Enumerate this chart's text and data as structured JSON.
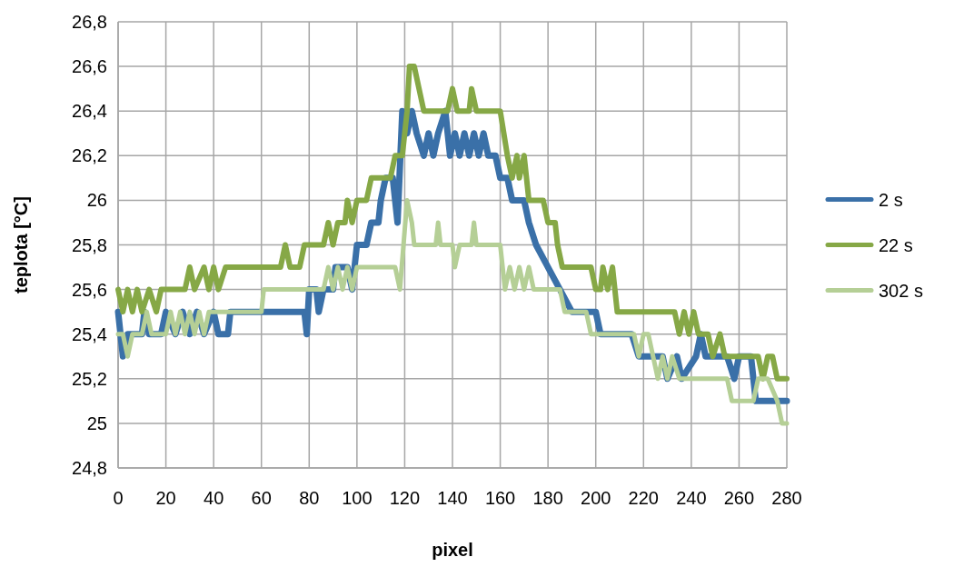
{
  "chart_data": {
    "type": "line",
    "xlabel": "pixel",
    "ylabel": "teplota [°C]",
    "xlim": [
      0,
      280
    ],
    "xticks": [
      0,
      20,
      40,
      60,
      80,
      100,
      120,
      140,
      160,
      180,
      200,
      220,
      240,
      260,
      280
    ],
    "ylim": [
      24.8,
      26.8
    ],
    "yticks": [
      {
        "value": 24.8,
        "label": "24,8"
      },
      {
        "value": 25,
        "label": "25"
      },
      {
        "value": 25.2,
        "label": "25,2"
      },
      {
        "value": 25.4,
        "label": "25,4"
      },
      {
        "value": 25.6,
        "label": "25,6"
      },
      {
        "value": 25.8,
        "label": "25,8"
      },
      {
        "value": 26,
        "label": "26"
      },
      {
        "value": 26.2,
        "label": "26,2"
      },
      {
        "value": 26.4,
        "label": "26,4"
      },
      {
        "value": 26.6,
        "label": "26,6"
      },
      {
        "value": 26.8,
        "label": "26,8"
      }
    ],
    "grid": true,
    "legend": "right",
    "marker": "none",
    "line_style": "solid",
    "series": [
      {
        "name": "2 s",
        "color": "#3a70a8",
        "x": [
          0,
          2,
          4,
          10,
          11,
          13,
          18,
          20,
          24,
          27,
          30,
          33,
          36,
          40,
          42,
          46,
          47,
          78,
          79,
          80,
          83,
          84,
          86,
          90,
          91,
          96,
          98,
          100,
          104,
          106,
          109,
          110,
          112,
          115,
          117,
          119,
          121,
          123,
          125,
          128,
          130,
          132,
          134,
          137,
          139,
          141,
          143,
          145,
          147,
          149,
          151,
          153,
          155,
          158,
          160,
          163,
          165,
          170,
          172,
          175,
          180,
          185,
          190,
          200,
          202,
          215,
          218,
          228,
          230,
          234,
          236,
          242,
          244,
          246,
          255,
          258,
          260,
          265,
          267,
          280
        ],
        "values": [
          25.5,
          25.3,
          25.4,
          25.4,
          25.5,
          25.4,
          25.4,
          25.5,
          25.4,
          25.5,
          25.4,
          25.5,
          25.4,
          25.5,
          25.4,
          25.4,
          25.5,
          25.5,
          25.4,
          25.6,
          25.6,
          25.5,
          25.6,
          25.6,
          25.7,
          25.7,
          25.6,
          25.8,
          25.8,
          25.9,
          25.9,
          26.0,
          26.1,
          26.1,
          25.9,
          26.4,
          26.3,
          26.4,
          26.3,
          26.2,
          26.3,
          26.2,
          26.3,
          26.4,
          26.2,
          26.3,
          26.2,
          26.3,
          26.2,
          26.3,
          26.2,
          26.3,
          26.2,
          26.2,
          26.1,
          26.1,
          26.0,
          26.0,
          25.9,
          25.8,
          25.7,
          25.6,
          25.5,
          25.5,
          25.4,
          25.4,
          25.3,
          25.3,
          25.2,
          25.3,
          25.2,
          25.3,
          25.4,
          25.3,
          25.3,
          25.2,
          25.3,
          25.3,
          25.1,
          25.1
        ]
      },
      {
        "name": "22 s",
        "color": "#86a846",
        "x": [
          0,
          2,
          4,
          6,
          8,
          10,
          13,
          16,
          18,
          28,
          30,
          32,
          36,
          38,
          40,
          42,
          45,
          68,
          70,
          72,
          76,
          78,
          86,
          88,
          90,
          92,
          95,
          96,
          98,
          100,
          104,
          106,
          114,
          116,
          119,
          121,
          122,
          124,
          126,
          128,
          138,
          140,
          142,
          147,
          148,
          150,
          160,
          163,
          165,
          167,
          168,
          170,
          172,
          178,
          180,
          183,
          184,
          186,
          198,
          200,
          202,
          203,
          205,
          207,
          209,
          233,
          235,
          237,
          239,
          241,
          243,
          247,
          249,
          252,
          254,
          268,
          270,
          272,
          274,
          276,
          280
        ],
        "values": [
          25.6,
          25.5,
          25.6,
          25.5,
          25.6,
          25.5,
          25.6,
          25.5,
          25.6,
          25.6,
          25.7,
          25.6,
          25.7,
          25.6,
          25.7,
          25.6,
          25.7,
          25.7,
          25.8,
          25.7,
          25.7,
          25.8,
          25.8,
          25.9,
          25.8,
          25.9,
          25.9,
          26.0,
          25.9,
          26.0,
          26.0,
          26.1,
          26.1,
          26.2,
          26.2,
          26.4,
          26.6,
          26.6,
          26.5,
          26.4,
          26.4,
          26.5,
          26.4,
          26.4,
          26.5,
          26.4,
          26.4,
          26.2,
          26.1,
          26.2,
          26.1,
          26.2,
          26.0,
          26.0,
          25.9,
          25.9,
          25.8,
          25.7,
          25.7,
          25.6,
          25.6,
          25.7,
          25.6,
          25.7,
          25.5,
          25.5,
          25.4,
          25.5,
          25.4,
          25.5,
          25.4,
          25.4,
          25.3,
          25.4,
          25.3,
          25.3,
          25.2,
          25.3,
          25.3,
          25.2,
          25.2
        ]
      },
      {
        "name": "302 s",
        "color": "#b5cf96",
        "x": [
          0,
          2,
          4,
          6,
          10,
          12,
          14,
          20,
          22,
          24,
          26,
          28,
          30,
          32,
          34,
          36,
          38,
          60,
          61,
          86,
          88,
          90,
          92,
          94,
          96,
          98,
          100,
          116,
          118,
          121,
          123,
          124,
          133,
          134,
          135,
          140,
          141,
          143,
          148,
          149,
          150,
          160,
          162,
          164,
          166,
          168,
          170,
          172,
          174,
          185,
          187,
          196,
          198,
          216,
          218,
          220,
          222,
          224,
          226,
          228,
          230,
          232,
          235,
          255,
          257,
          266,
          268,
          272,
          276,
          278,
          280
        ],
        "values": [
          25.4,
          25.4,
          25.3,
          25.4,
          25.4,
          25.5,
          25.4,
          25.4,
          25.5,
          25.4,
          25.5,
          25.4,
          25.5,
          25.4,
          25.5,
          25.4,
          25.5,
          25.5,
          25.6,
          25.6,
          25.7,
          25.6,
          25.7,
          25.6,
          25.7,
          25.6,
          25.7,
          25.7,
          25.6,
          26.0,
          25.9,
          25.8,
          25.8,
          25.9,
          25.8,
          25.8,
          25.7,
          25.8,
          25.8,
          25.9,
          25.8,
          25.8,
          25.6,
          25.7,
          25.6,
          25.7,
          25.6,
          25.7,
          25.6,
          25.6,
          25.5,
          25.5,
          25.4,
          25.4,
          25.3,
          25.4,
          25.4,
          25.3,
          25.2,
          25.3,
          25.2,
          25.3,
          25.2,
          25.2,
          25.1,
          25.1,
          25.2,
          25.2,
          25.1,
          25.0,
          25.0
        ]
      }
    ]
  }
}
